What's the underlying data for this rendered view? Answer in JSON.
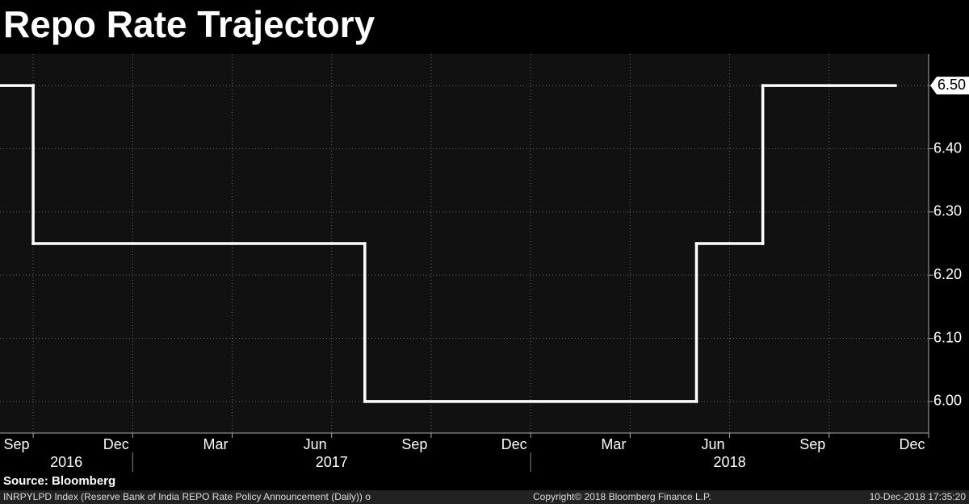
{
  "chart_data": {
    "type": "step",
    "title": "Repo Rate Trajectory",
    "x": [
      "2016-09",
      "2016-10",
      "2017-08",
      "2018-06",
      "2018-08",
      "2018-12"
    ],
    "series": [
      {
        "color": "#ffffff",
        "values": [
          6.5,
          6.25,
          6.0,
          6.25,
          6.5,
          6.5
        ],
        "value_labels": [
          null,
          null,
          null,
          null,
          null,
          "6.50"
        ]
      }
    ],
    "xlim": [
      "2016-09",
      "2019-01"
    ],
    "xticks": [
      {
        "value": "2016-09",
        "label": "Sep"
      },
      {
        "value": "2016-12",
        "label": "Dec"
      },
      {
        "value": "2017-03",
        "label": "Mar"
      },
      {
        "value": "2017-06",
        "label": "Jun"
      },
      {
        "value": "2017-09",
        "label": "Sep"
      },
      {
        "value": "2017-12",
        "label": "Dec"
      },
      {
        "value": "2018-03",
        "label": "Mar"
      },
      {
        "value": "2018-06",
        "label": "Jun"
      },
      {
        "value": "2018-09",
        "label": "Sep"
      },
      {
        "value": "2018-12",
        "label": "Dec"
      }
    ],
    "years": [
      "2016",
      "2017",
      "2018"
    ],
    "ylim": [
      5.95,
      6.55
    ],
    "yticks": [
      {
        "value": 6.0,
        "label": "6.00"
      },
      {
        "value": 6.1,
        "label": "6.10"
      },
      {
        "value": 6.2,
        "label": "6.20"
      },
      {
        "value": 6.3,
        "label": "6.30"
      },
      {
        "value": 6.4,
        "label": "6.40"
      },
      {
        "value": 6.5,
        "label": "6.50"
      }
    ],
    "grid": true,
    "source": "Source: Bloomberg",
    "footer_left": "INRPYLPD Index (Reserve Bank of India REPO Rate Policy Announcement (Daily)) o",
    "footer_center": "Copyright© 2018 Bloomberg Finance L.P.",
    "footer_right": "10-Dec-2018 17:35:20"
  }
}
